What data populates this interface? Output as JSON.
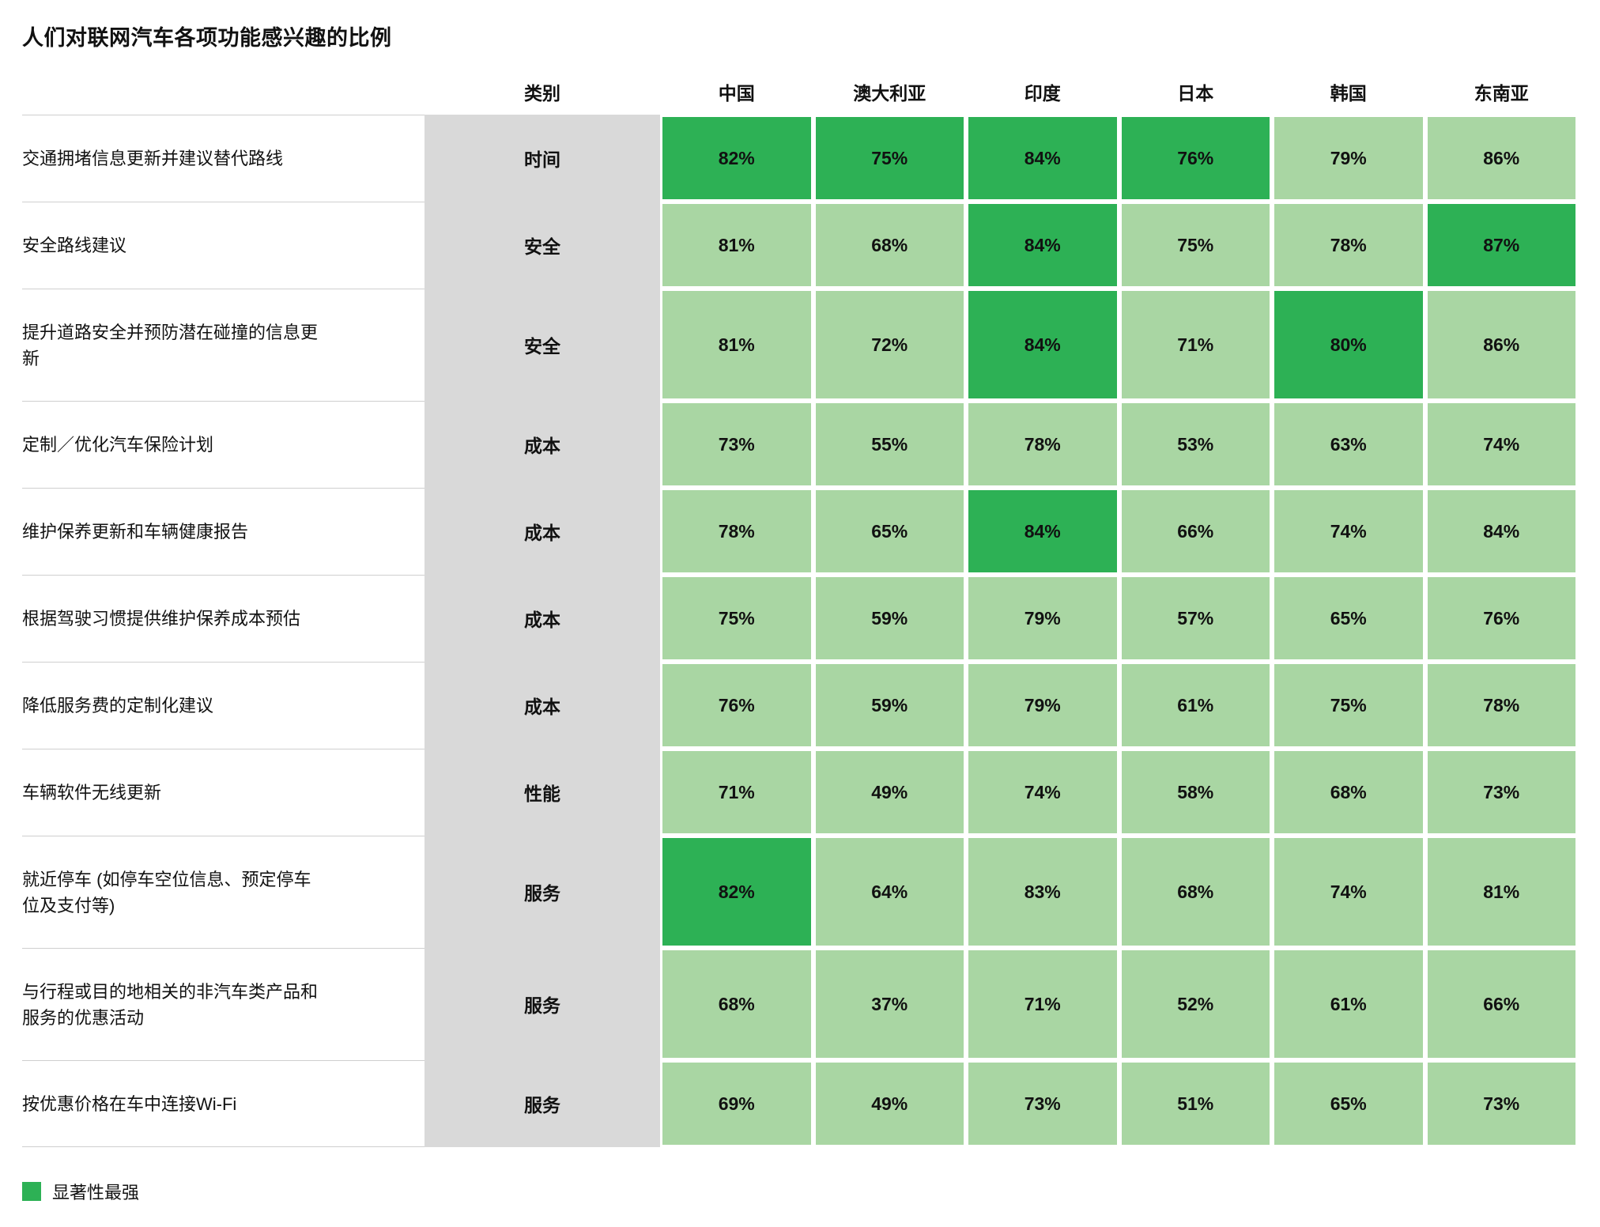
{
  "title": "人们对联网汽车各项功能感兴趣的比例",
  "legend": {
    "label": "显著性最强"
  },
  "colors": {
    "highlight": "#2db155",
    "normal": "#a9d6a3",
    "category_bg": "#d9d9d9"
  },
  "chart_data": {
    "type": "heatmap",
    "title": "人们对联网汽车各项功能感兴趣的比例",
    "columns": [
      "类别",
      "中国",
      "澳大利亚",
      "印度",
      "日本",
      "韩国",
      "东南亚"
    ],
    "value_unit": "%",
    "highlight_meaning": "显著性最强",
    "rows": [
      {
        "label": "交通拥堵信息更新并建议替代路线",
        "category": "时间",
        "values": [
          82,
          75,
          84,
          76,
          79,
          86
        ],
        "highlight": [
          true,
          true,
          true,
          true,
          false,
          false
        ]
      },
      {
        "label": "安全路线建议",
        "category": "安全",
        "values": [
          81,
          68,
          84,
          75,
          78,
          87
        ],
        "highlight": [
          false,
          false,
          true,
          false,
          false,
          true
        ]
      },
      {
        "label": "提升道路安全并预防潜在碰撞的信息更新",
        "category": "安全",
        "values": [
          81,
          72,
          84,
          71,
          80,
          86
        ],
        "highlight": [
          false,
          false,
          true,
          false,
          true,
          false
        ]
      },
      {
        "label": "定制／优化汽车保险计划",
        "category": "成本",
        "values": [
          73,
          55,
          78,
          53,
          63,
          74
        ],
        "highlight": [
          false,
          false,
          false,
          false,
          false,
          false
        ]
      },
      {
        "label": "维护保养更新和车辆健康报告",
        "category": "成本",
        "values": [
          78,
          65,
          84,
          66,
          74,
          84
        ],
        "highlight": [
          false,
          false,
          true,
          false,
          false,
          false
        ]
      },
      {
        "label": "根据驾驶习惯提供维护保养成本预估",
        "category": "成本",
        "values": [
          75,
          59,
          79,
          57,
          65,
          76
        ],
        "highlight": [
          false,
          false,
          false,
          false,
          false,
          false
        ]
      },
      {
        "label": "降低服务费的定制化建议",
        "category": "成本",
        "values": [
          76,
          59,
          79,
          61,
          75,
          78
        ],
        "highlight": [
          false,
          false,
          false,
          false,
          false,
          false
        ]
      },
      {
        "label": "车辆软件无线更新",
        "category": "性能",
        "values": [
          71,
          49,
          74,
          58,
          68,
          73
        ],
        "highlight": [
          false,
          false,
          false,
          false,
          false,
          false
        ]
      },
      {
        "label": "就近停车 (如停车空位信息、预定停车位及支付等)",
        "category": "服务",
        "values": [
          82,
          64,
          83,
          68,
          74,
          81
        ],
        "highlight": [
          true,
          false,
          false,
          false,
          false,
          false
        ]
      },
      {
        "label": "与行程或目的地相关的非汽车类产品和服务的优惠活动",
        "category": "服务",
        "values": [
          68,
          37,
          71,
          52,
          61,
          66
        ],
        "highlight": [
          false,
          false,
          false,
          false,
          false,
          false
        ]
      },
      {
        "label": "按优惠价格在车中连接Wi-Fi",
        "category": "服务",
        "values": [
          69,
          49,
          73,
          51,
          65,
          73
        ],
        "highlight": [
          false,
          false,
          false,
          false,
          false,
          false
        ]
      }
    ]
  }
}
